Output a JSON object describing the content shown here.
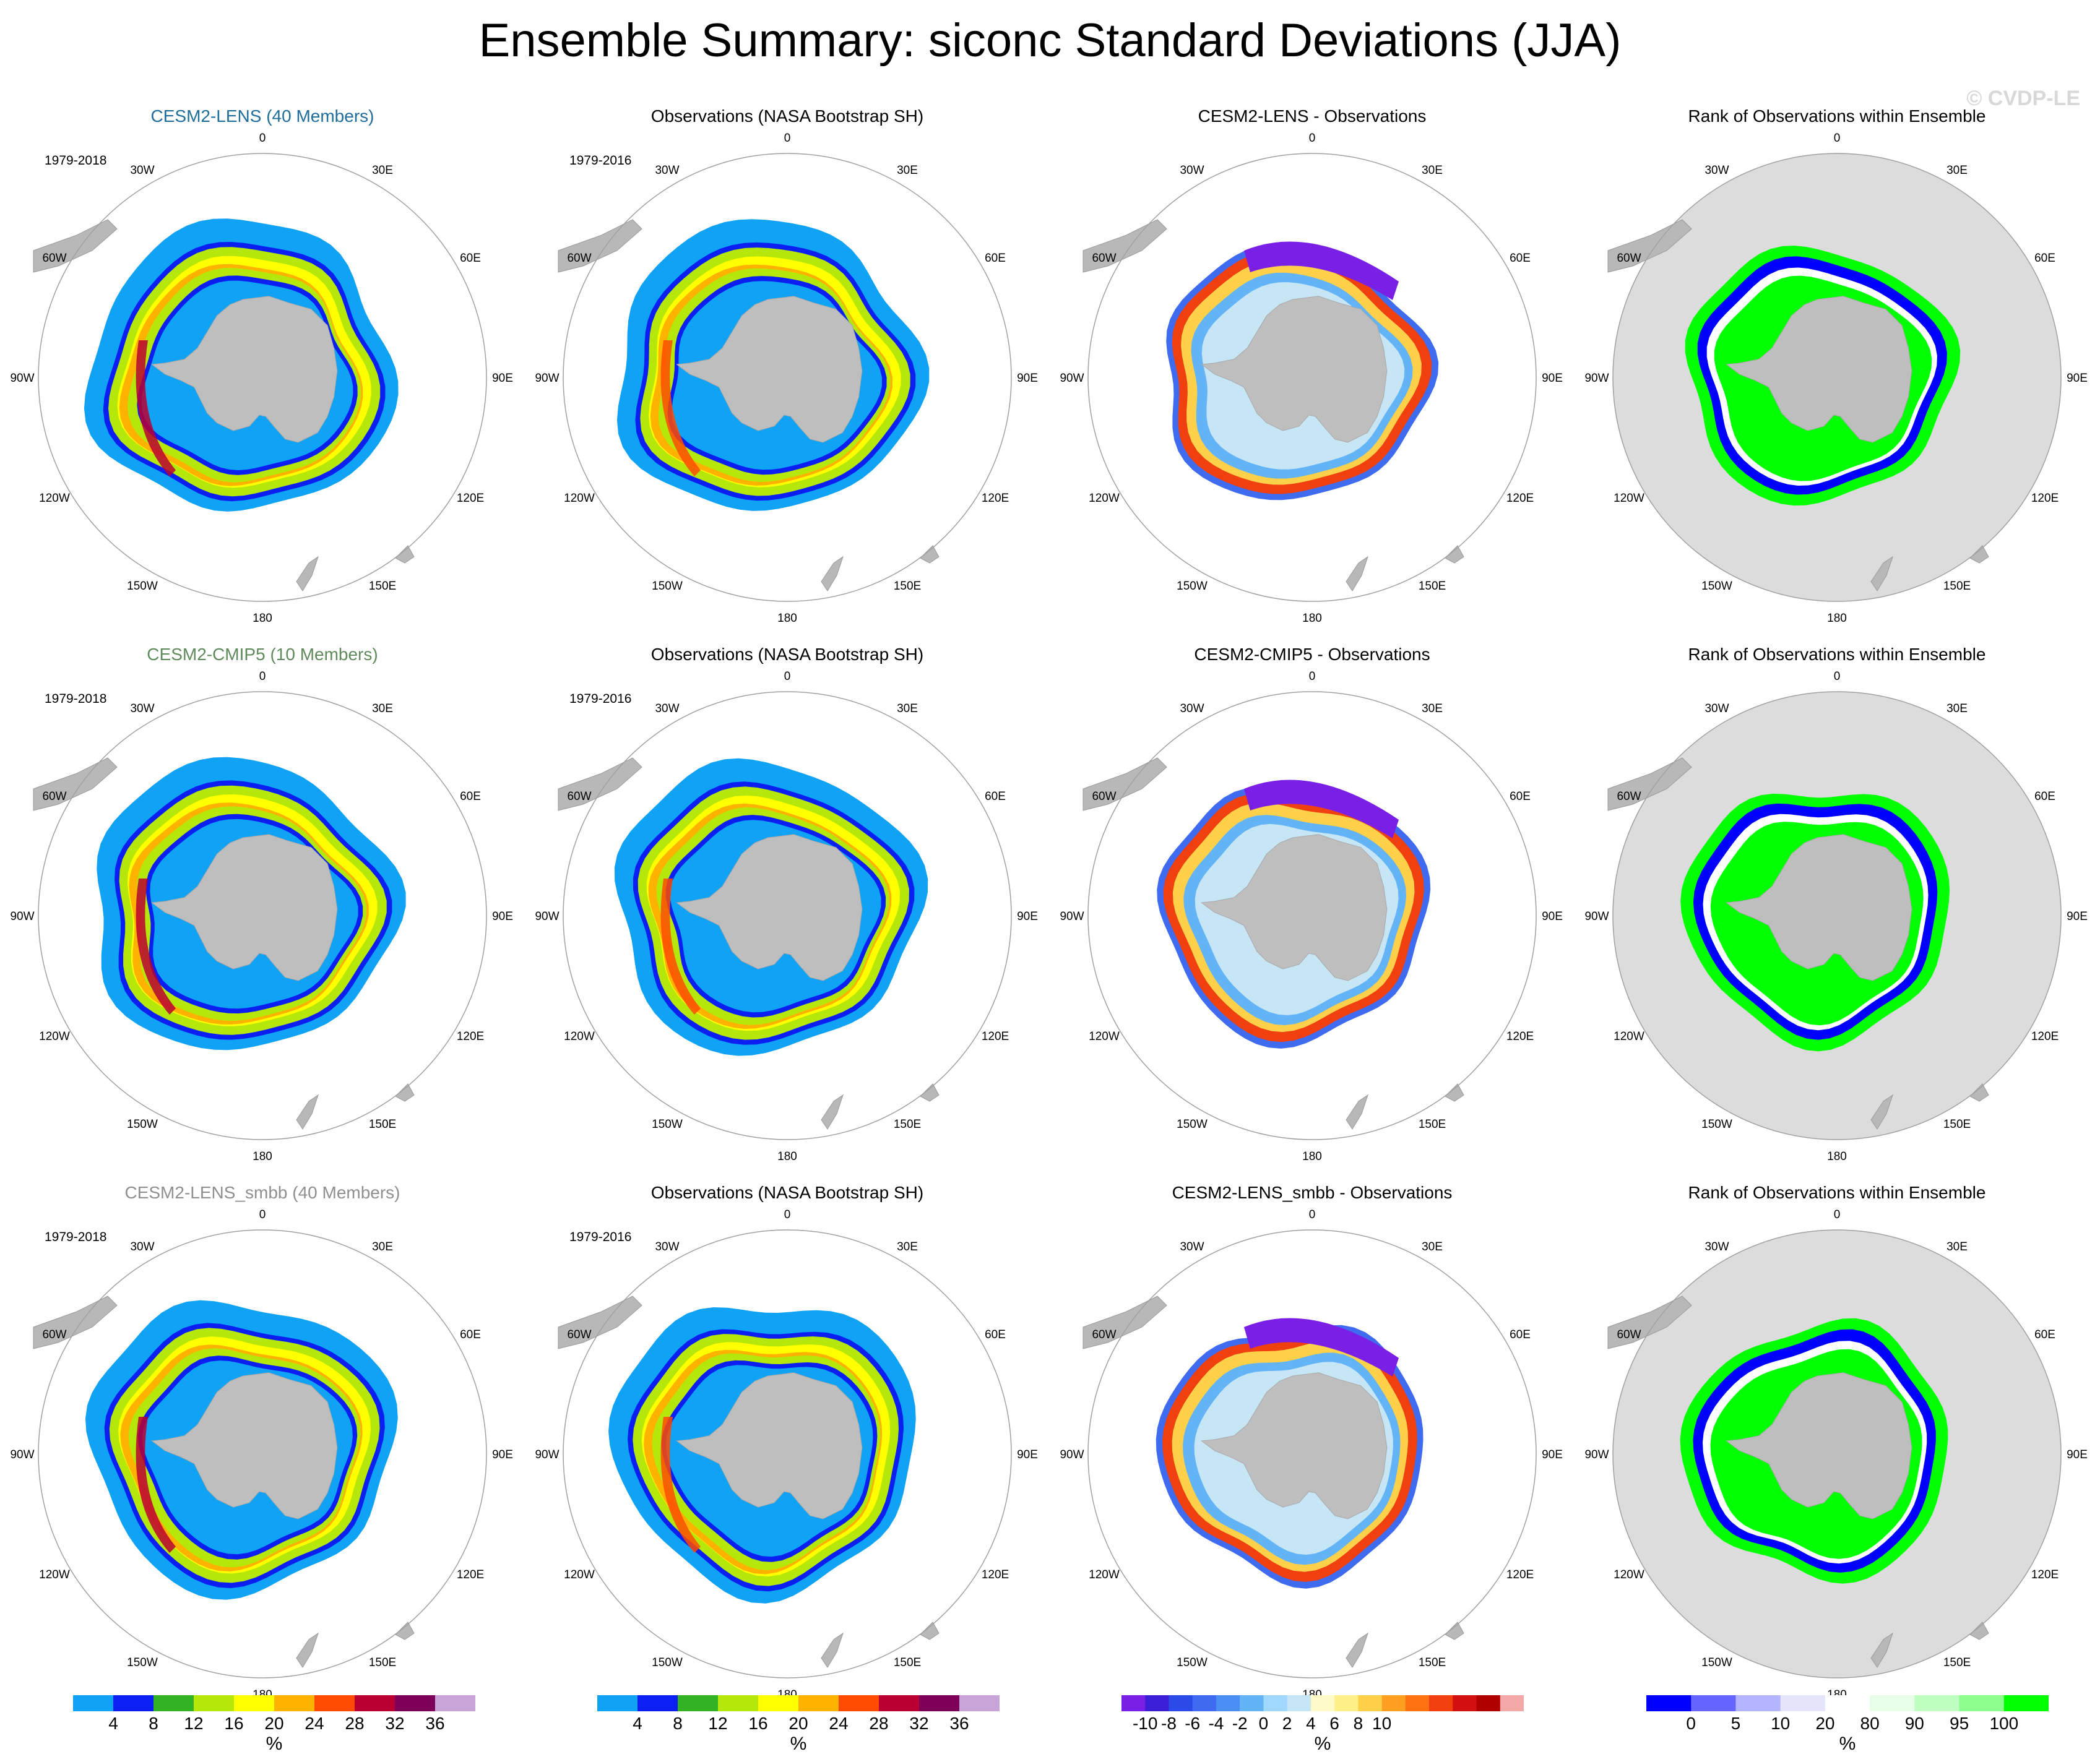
{
  "title": "Ensemble Summary: siconc Standard Deviations (JJA)",
  "watermark": "© CVDP-LE",
  "lon_labels": [
    "0",
    "30E",
    "60E",
    "90E",
    "120E",
    "150E",
    "180",
    "150W",
    "120W",
    "90W",
    "60W",
    "30W"
  ],
  "rows": [
    {
      "model": {
        "title": "CESM2-LENS (40 Members)",
        "color": "#1f6d9b",
        "period": "1979-2018"
      },
      "obs": {
        "title": "Observations (NASA Bootstrap SH)",
        "period": "1979-2016"
      },
      "diff": {
        "title": "CESM2-LENS - Observations"
      },
      "rank": {
        "title": "Rank of Observations within Ensemble"
      }
    },
    {
      "model": {
        "title": "CESM2-CMIP5 (10 Members)",
        "color": "#5f8a5b",
        "period": "1979-2018"
      },
      "obs": {
        "title": "Observations (NASA Bootstrap SH)",
        "period": "1979-2016"
      },
      "diff": {
        "title": "CESM2-CMIP5 - Observations"
      },
      "rank": {
        "title": "Rank of Observations within Ensemble"
      }
    },
    {
      "model": {
        "title": "CESM2-LENS_smbb (40 Members)",
        "color": "#8f8f8f",
        "period": "1979-2018"
      },
      "obs": {
        "title": "Observations (NASA Bootstrap SH)",
        "period": "1979-2016"
      },
      "diff": {
        "title": "CESM2-LENS_smbb - Observations"
      },
      "rank": {
        "title": "Rank of Observations within Ensemble"
      }
    }
  ],
  "colorbars": {
    "stddev": {
      "colors": [
        "#0fa2f5",
        "#0b1ff2",
        "#33b324",
        "#b5e80a",
        "#ffff00",
        "#ffb200",
        "#ff4b00",
        "#ba0033",
        "#7d0059",
        "#c8a4d8"
      ],
      "ticks": [
        "4",
        "8",
        "12",
        "16",
        "20",
        "24",
        "28",
        "32",
        "36"
      ],
      "units": "%"
    },
    "diff": {
      "colors": [
        "#7a1fe6",
        "#3a1fd6",
        "#2a4be8",
        "#3f6bf0",
        "#4a8ef2",
        "#63b4f7",
        "#9fd8fa",
        "#c6e6f6",
        "#fffbc8",
        "#fff08a",
        "#ffd04a",
        "#ffa020",
        "#ff7010",
        "#f04010",
        "#d21010",
        "#b00000",
        "#f4a8a8"
      ],
      "ticks": [
        "-10",
        "-8",
        "-6",
        "-4",
        "-2",
        "0",
        "2",
        "4",
        "6",
        "8",
        "10"
      ],
      "units": "%"
    },
    "rank": {
      "colors": [
        "#0000ff",
        "#6666ff",
        "#b4b4ff",
        "#e4e4fb",
        "#ffffff",
        "#e6ffe6",
        "#bfffbf",
        "#8cff8c",
        "#00ff00"
      ],
      "ticks": [
        "0",
        "5",
        "10",
        "20",
        "80",
        "90",
        "95",
        "100"
      ],
      "units": "%"
    }
  }
}
